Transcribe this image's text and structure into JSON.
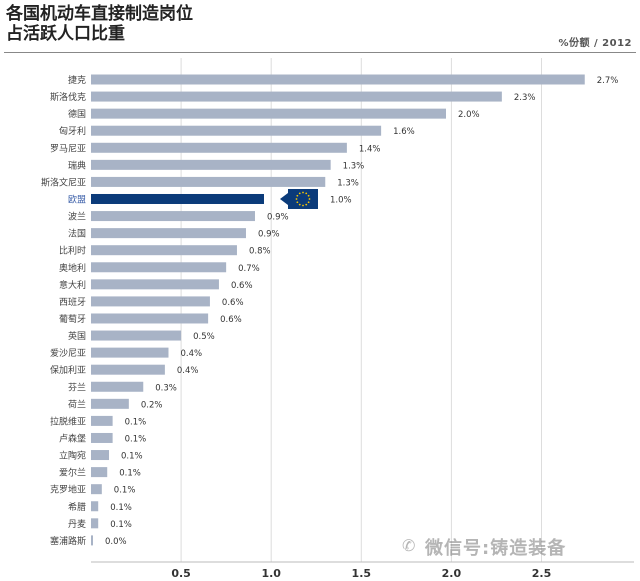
{
  "title_line1": "各国机动车直接制造岗位",
  "title_line2": "占活跃人口比重",
  "unit_year": "%份额 / 2012",
  "watermark": "微信号:铸造装备",
  "watermark_icon": "wechat-icon",
  "colors": {
    "bar": "#a8b3c6",
    "highlight": "#0b3b7a",
    "axis_text": "#333333",
    "grid": "#dddddd",
    "eu_flag": "#0b3b7a",
    "eu_stars": "#f5c400"
  },
  "chart_data": {
    "type": "bar",
    "orientation": "horizontal",
    "categories": [
      "捷克",
      "斯洛伐克",
      "德国",
      "匈牙利",
      "罗马尼亚",
      "瑞典",
      "斯洛文尼亚",
      "欧盟",
      "波兰",
      "法国",
      "比利时",
      "奥地利",
      "意大利",
      "西班牙",
      "葡萄牙",
      "英国",
      "爱沙尼亚",
      "保加利亚",
      "芬兰",
      "荷兰",
      "拉脱维亚",
      "卢森堡",
      "立陶宛",
      "爱尔兰",
      "克罗地亚",
      "希腊",
      "丹麦",
      "塞浦路斯"
    ],
    "values": [
      2.7,
      2.3,
      2.0,
      1.6,
      1.4,
      1.3,
      1.3,
      1.0,
      0.9,
      0.9,
      0.8,
      0.7,
      0.6,
      0.6,
      0.6,
      0.5,
      0.4,
      0.4,
      0.3,
      0.2,
      0.1,
      0.1,
      0.1,
      0.1,
      0.1,
      0.1,
      0.1,
      0.0
    ],
    "plot_values": [
      2.74,
      2.28,
      1.97,
      1.61,
      1.42,
      1.33,
      1.3,
      0.96,
      0.91,
      0.86,
      0.81,
      0.75,
      0.71,
      0.66,
      0.65,
      0.5,
      0.43,
      0.41,
      0.29,
      0.21,
      0.12,
      0.12,
      0.1,
      0.09,
      0.06,
      0.04,
      0.04,
      0.01
    ],
    "value_labels": [
      "2.7%",
      "2.3%",
      "2.0%",
      "1.6%",
      "1.4%",
      "1.3%",
      "1.3%",
      "1.0%",
      "0.9%",
      "0.9%",
      "0.8%",
      "0.7%",
      "0.6%",
      "0.6%",
      "0.6%",
      "0.5%",
      "0.4%",
      "0.4%",
      "0.3%",
      "0.2%",
      "0.1%",
      "0.1%",
      "0.1%",
      "0.1%",
      "0.1%",
      "0.1%",
      "0.1%",
      "0.0%"
    ],
    "highlight_index": 7,
    "highlight_marker": "eu-flag-icon",
    "xlim": [
      0,
      3.0
    ],
    "xticks": [
      0.5,
      1.0,
      1.5,
      2.0,
      2.5
    ],
    "xtick_labels": [
      "0.5",
      "1.0",
      "1.5",
      "2.0",
      "2.5"
    ],
    "grid": true
  }
}
